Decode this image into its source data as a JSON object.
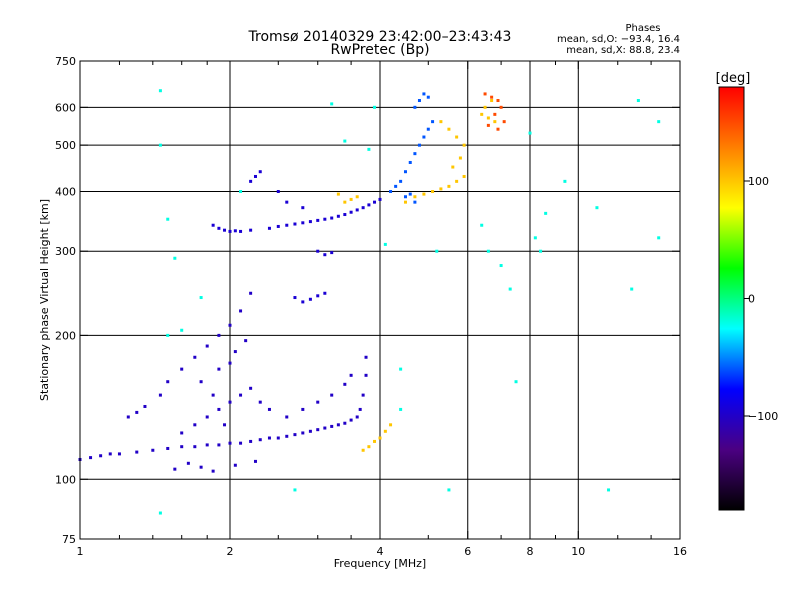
{
  "chart_data": {
    "type": "scatter",
    "title": "Tromsø 20140329 23:42:00–23:43:43",
    "subtitle": "RwPretec (Bp)",
    "xlabel": "Frequency [MHz]",
    "ylabel": "Stationary phase Virtual Height [km]",
    "x_scale": "log2",
    "y_scale": "log",
    "xlim": [
      1,
      16
    ],
    "ylim": [
      75,
      750
    ],
    "x_ticks": [
      1,
      2,
      4,
      6,
      8,
      10,
      16
    ],
    "x_tick_labels": [
      "1",
      "2",
      "4",
      "6",
      "8",
      "10",
      "16"
    ],
    "x_grid": [
      2,
      4,
      6,
      8,
      10
    ],
    "x_minor_ticks": [
      1.2,
      1.4,
      1.6,
      1.8,
      2.5,
      3,
      3.5,
      5,
      7,
      9,
      12,
      14
    ],
    "y_ticks": [
      75,
      100,
      200,
      300,
      400,
      500,
      600,
      750
    ],
    "y_tick_labels": [
      "75",
      "100",
      "200",
      "300",
      "400",
      "500",
      "600",
      "750"
    ],
    "y_grid": [
      100,
      200,
      300,
      400,
      500,
      600
    ],
    "grid": true,
    "phases_box": {
      "heading": "Phases",
      "line1": "mean, sd,O: −93.4, 16.4",
      "line2": "mean, sd,X:  88.8, 23.4"
    },
    "colorbar": {
      "label": "[deg]",
      "range": [
        -180,
        180
      ],
      "tick_values": [
        100,
        0,
        -100
      ],
      "tick_labels": [
        "100",
        "0",
        "−100"
      ],
      "colors": [
        "#000000",
        "#4b0082",
        "#0000ff",
        "#00ffff",
        "#00ff00",
        "#ffff00",
        "#ff7f00",
        "#ff0000"
      ]
    },
    "series": [
      {
        "name": "E/F1 layer trace (blue)",
        "phase": -100,
        "points": [
          [
            1.0,
            110
          ],
          [
            1.05,
            111
          ],
          [
            1.1,
            112
          ],
          [
            1.15,
            113
          ],
          [
            1.2,
            113
          ],
          [
            1.3,
            114
          ],
          [
            1.4,
            115
          ],
          [
            1.5,
            116
          ],
          [
            1.6,
            117
          ],
          [
            1.7,
            117
          ],
          [
            1.8,
            118
          ],
          [
            1.9,
            118
          ],
          [
            2.0,
            119
          ],
          [
            2.1,
            119
          ],
          [
            2.2,
            120
          ],
          [
            2.3,
            121
          ],
          [
            2.4,
            122
          ],
          [
            2.5,
            122
          ],
          [
            2.6,
            123
          ],
          [
            2.7,
            124
          ],
          [
            2.8,
            125
          ],
          [
            2.9,
            126
          ],
          [
            3.0,
            127
          ],
          [
            3.1,
            128
          ],
          [
            3.2,
            129
          ],
          [
            3.3,
            130
          ],
          [
            3.4,
            131
          ],
          [
            3.5,
            133
          ],
          [
            3.6,
            135
          ],
          [
            3.65,
            140
          ],
          [
            3.7,
            150
          ],
          [
            3.75,
            165
          ],
          [
            3.75,
            180
          ],
          [
            1.25,
            135
          ],
          [
            1.3,
            138
          ],
          [
            1.35,
            142
          ],
          [
            1.45,
            150
          ],
          [
            1.5,
            160
          ],
          [
            1.6,
            170
          ],
          [
            1.7,
            180
          ],
          [
            1.8,
            190
          ],
          [
            1.9,
            200
          ],
          [
            2.0,
            210
          ],
          [
            2.1,
            225
          ],
          [
            2.2,
            245
          ],
          [
            1.55,
            105
          ],
          [
            1.65,
            108
          ],
          [
            1.75,
            106
          ],
          [
            1.85,
            104
          ],
          [
            2.05,
            107
          ],
          [
            2.25,
            109
          ],
          [
            1.6,
            125
          ],
          [
            1.7,
            130
          ],
          [
            1.8,
            135
          ],
          [
            1.9,
            140
          ],
          [
            2.0,
            145
          ],
          [
            2.1,
            150
          ],
          [
            2.2,
            155
          ],
          [
            2.3,
            145
          ],
          [
            2.4,
            140
          ],
          [
            2.6,
            135
          ],
          [
            2.8,
            140
          ],
          [
            3.0,
            145
          ],
          [
            3.2,
            150
          ],
          [
            3.4,
            158
          ],
          [
            3.5,
            165
          ],
          [
            1.9,
            170
          ],
          [
            2.0,
            175
          ],
          [
            2.05,
            185
          ],
          [
            2.15,
            195
          ],
          [
            1.75,
            160
          ],
          [
            1.85,
            150
          ],
          [
            1.95,
            130
          ]
        ]
      },
      {
        "name": "F2 low trace (blue)",
        "phase": -95,
        "points": [
          [
            1.85,
            340
          ],
          [
            1.9,
            335
          ],
          [
            1.95,
            332
          ],
          [
            2.0,
            330
          ],
          [
            2.05,
            331
          ],
          [
            2.1,
            330
          ],
          [
            2.2,
            332
          ],
          [
            2.4,
            335
          ],
          [
            2.5,
            338
          ],
          [
            2.6,
            340
          ],
          [
            2.7,
            342
          ],
          [
            2.8,
            344
          ],
          [
            2.9,
            346
          ],
          [
            3.0,
            348
          ],
          [
            3.1,
            350
          ],
          [
            3.2,
            352
          ],
          [
            3.3,
            355
          ],
          [
            3.4,
            358
          ],
          [
            3.5,
            362
          ],
          [
            3.6,
            366
          ],
          [
            3.7,
            370
          ],
          [
            3.8,
            375
          ],
          [
            3.9,
            380
          ],
          [
            4.0,
            385
          ],
          [
            2.2,
            420
          ],
          [
            2.25,
            430
          ],
          [
            2.3,
            440
          ],
          [
            2.5,
            400
          ],
          [
            2.6,
            380
          ],
          [
            2.8,
            370
          ],
          [
            3.0,
            300
          ],
          [
            3.1,
            295
          ],
          [
            3.2,
            298
          ],
          [
            2.7,
            240
          ],
          [
            2.8,
            235
          ],
          [
            2.9,
            238
          ],
          [
            3.0,
            242
          ],
          [
            3.1,
            245
          ]
        ]
      },
      {
        "name": "F2 upper trace (mixed)",
        "phase": -60,
        "points": [
          [
            4.2,
            400
          ],
          [
            4.3,
            410
          ],
          [
            4.4,
            420
          ],
          [
            4.5,
            440
          ],
          [
            4.6,
            460
          ],
          [
            4.7,
            480
          ],
          [
            4.8,
            500
          ],
          [
            4.9,
            520
          ],
          [
            5.0,
            540
          ],
          [
            5.1,
            560
          ],
          [
            4.7,
            600
          ],
          [
            4.8,
            620
          ],
          [
            4.9,
            640
          ],
          [
            5.0,
            630
          ],
          [
            4.5,
            390
          ],
          [
            4.6,
            395
          ],
          [
            4.7,
            380
          ]
        ]
      },
      {
        "name": "X-mode trace (yellow)",
        "phase": 100,
        "points": [
          [
            3.7,
            115
          ],
          [
            3.8,
            117
          ],
          [
            3.9,
            120
          ],
          [
            4.0,
            122
          ],
          [
            4.1,
            126
          ],
          [
            4.2,
            130
          ],
          [
            4.5,
            380
          ],
          [
            4.7,
            390
          ],
          [
            4.9,
            395
          ],
          [
            5.1,
            400
          ],
          [
            5.3,
            405
          ],
          [
            5.5,
            410
          ],
          [
            5.7,
            420
          ],
          [
            5.9,
            430
          ],
          [
            5.6,
            450
          ],
          [
            5.8,
            470
          ],
          [
            5.9,
            500
          ],
          [
            5.7,
            520
          ],
          [
            5.5,
            540
          ],
          [
            5.3,
            560
          ],
          [
            3.4,
            380
          ],
          [
            3.5,
            385
          ],
          [
            3.6,
            390
          ],
          [
            3.3,
            395
          ],
          [
            6.4,
            580
          ],
          [
            6.6,
            570
          ],
          [
            6.8,
            560
          ],
          [
            6.5,
            600
          ],
          [
            6.7,
            620
          ]
        ]
      },
      {
        "name": "high-frequency echoes (orange/red)",
        "phase": 150,
        "points": [
          [
            6.5,
            640
          ],
          [
            6.7,
            630
          ],
          [
            6.9,
            620
          ],
          [
            7.0,
            600
          ],
          [
            6.8,
            580
          ],
          [
            6.6,
            550
          ],
          [
            6.9,
            540
          ],
          [
            7.1,
            560
          ]
        ]
      },
      {
        "name": "scattered noise",
        "phase": -20,
        "points": [
          [
            1.45,
            650
          ],
          [
            1.45,
            500
          ],
          [
            1.5,
            350
          ],
          [
            1.55,
            290
          ],
          [
            1.5,
            200
          ],
          [
            1.6,
            205
          ],
          [
            1.45,
            85
          ],
          [
            1.75,
            240
          ],
          [
            2.7,
            95
          ],
          [
            3.2,
            610
          ],
          [
            3.4,
            510
          ],
          [
            3.8,
            490
          ],
          [
            4.1,
            310
          ],
          [
            4.4,
            140
          ],
          [
            5.2,
            300
          ],
          [
            5.5,
            95
          ],
          [
            6.4,
            340
          ],
          [
            6.6,
            300
          ],
          [
            7.0,
            280
          ],
          [
            7.3,
            250
          ],
          [
            7.5,
            160
          ],
          [
            8.0,
            530
          ],
          [
            8.2,
            320
          ],
          [
            8.4,
            300
          ],
          [
            8.6,
            360
          ],
          [
            10.9,
            370
          ],
          [
            11.5,
            95
          ],
          [
            12.8,
            250
          ],
          [
            13.2,
            620
          ],
          [
            14.5,
            560
          ],
          [
            14.5,
            320
          ],
          [
            9.4,
            420
          ],
          [
            4.4,
            170
          ],
          [
            3.9,
            600
          ],
          [
            2.1,
            400
          ]
        ]
      }
    ]
  }
}
